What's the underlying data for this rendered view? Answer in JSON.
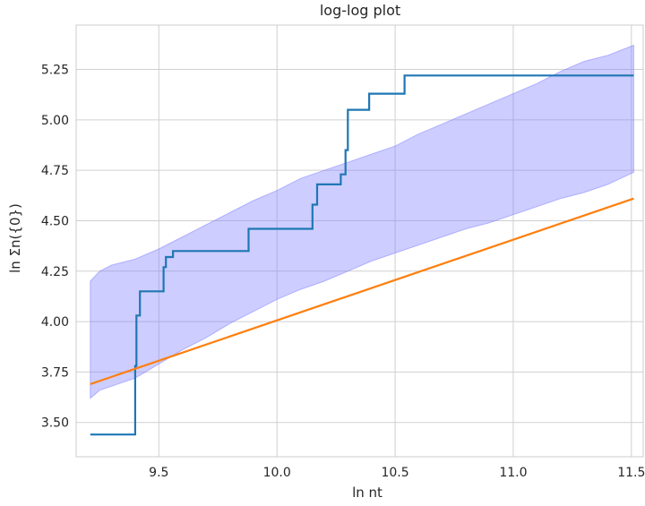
{
  "chart_data": {
    "type": "line",
    "title": "log-log plot",
    "xlabel": "ln nt",
    "ylabel": "ln Σn({0})",
    "xlim": [
      9.15,
      11.55
    ],
    "ylim": [
      3.33,
      5.47
    ],
    "xticks": [
      9.5,
      10.0,
      10.5,
      11.0,
      11.5
    ],
    "xtick_labels": [
      "9.5",
      "10.0",
      "10.5",
      "11.0",
      "11.5"
    ],
    "yticks": [
      3.5,
      3.75,
      4.0,
      4.25,
      4.5,
      4.75,
      5.0,
      5.25
    ],
    "ytick_labels": [
      "3.50",
      "3.75",
      "4.00",
      "4.25",
      "4.50",
      "4.75",
      "5.00",
      "5.25"
    ],
    "grid": true,
    "legend": "none",
    "colors": {
      "step_line": "#1f77b4",
      "fit_line": "#ff7f0e",
      "band_fill": "#7b7bff",
      "grid": "#d0d0d0",
      "frame": "#cccccc"
    },
    "series": [
      {
        "kind": "step",
        "x": [
          9.21,
          9.4,
          9.4,
          9.405,
          9.405,
          9.42,
          9.42,
          9.52,
          9.52,
          9.53,
          9.53,
          9.56,
          9.56,
          9.88,
          9.88,
          10.15,
          10.15,
          10.17,
          10.17,
          10.27,
          10.27,
          10.29,
          10.29,
          10.3,
          10.3,
          10.39,
          10.39,
          10.54,
          10.54,
          11.51
        ],
        "y": [
          3.44,
          3.44,
          3.78,
          3.78,
          4.03,
          4.03,
          4.15,
          4.15,
          4.27,
          4.27,
          4.32,
          4.32,
          4.35,
          4.35,
          4.46,
          4.46,
          4.58,
          4.58,
          4.68,
          4.68,
          4.73,
          4.73,
          4.85,
          4.85,
          5.05,
          5.05,
          5.13,
          5.13,
          5.22,
          5.22
        ]
      },
      {
        "kind": "line",
        "x": [
          9.21,
          11.51
        ],
        "y": [
          3.69,
          4.61
        ]
      }
    ],
    "band": {
      "x": [
        9.21,
        9.25,
        9.3,
        9.4,
        9.5,
        9.6,
        9.7,
        9.8,
        9.9,
        10.0,
        10.1,
        10.2,
        10.3,
        10.4,
        10.5,
        10.6,
        10.7,
        10.8,
        10.9,
        11.0,
        11.1,
        11.2,
        11.3,
        11.4,
        11.51
      ],
      "lower": [
        3.62,
        3.66,
        3.68,
        3.72,
        3.79,
        3.86,
        3.92,
        3.99,
        4.05,
        4.11,
        4.16,
        4.2,
        4.25,
        4.3,
        4.34,
        4.38,
        4.42,
        4.46,
        4.49,
        4.53,
        4.57,
        4.61,
        4.64,
        4.68,
        4.74
      ],
      "upper": [
        4.2,
        4.25,
        4.28,
        4.31,
        4.36,
        4.42,
        4.48,
        4.54,
        4.6,
        4.65,
        4.71,
        4.75,
        4.79,
        4.83,
        4.87,
        4.93,
        4.98,
        5.03,
        5.08,
        5.13,
        5.18,
        5.24,
        5.29,
        5.32,
        5.37
      ]
    }
  }
}
